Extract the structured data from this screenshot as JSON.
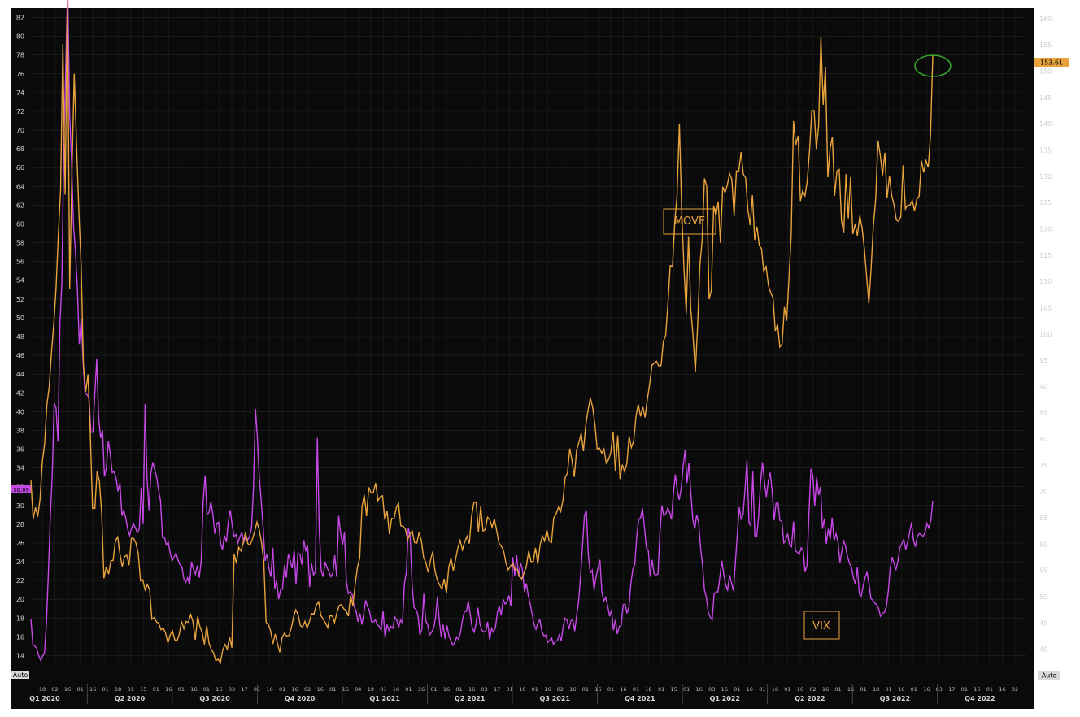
{
  "colors": {
    "background": "#0a0a0a",
    "grid": "#262626",
    "move": "#e8a33d",
    "vix": "#c848e8",
    "highlight_circle": "#3aa832"
  },
  "chart_data": {
    "type": "line",
    "series": [
      {
        "name": "MOVE",
        "axis": "right",
        "values": [
          72.1,
          64.8,
          67.0,
          65.2,
          68.5,
          75.6,
          79.0,
          86.6,
          89.9,
          96.5,
          101.8,
          108.6,
          118.8,
          127.3,
          155.2,
          126.5,
          164.0,
          108.6,
          131.3,
          149.5,
          135.7,
          123.1,
          113.0,
          94.0,
          89.0,
          92.3,
          81.2,
          66.8,
          66.8,
          73.9,
          72.0,
          66.0,
          53.5,
          55.7,
          54.3,
          56.8,
          56.9,
          60.6,
          61.4,
          58.1,
          55.7,
          57.6,
          57.9,
          56.0,
          61.1,
          61.1,
          60.2,
          58.2,
          53.0,
          53.2,
          51.3,
          52.3,
          51.3,
          45.7,
          46.0,
          45.2,
          44.9,
          43.7,
          44.0,
          43.1,
          41.2,
          42.7,
          43.5,
          41.8,
          41.6,
          42.9,
          45.3,
          43.9,
          45.3,
          45.1,
          46.6,
          45.2,
          41.8,
          46.2,
          44.3,
          43.2,
          40.9,
          44.5,
          41.1,
          40.0,
          39.3,
          37.8,
          38.1,
          37.4,
          39.8,
          40.9,
          40.0,
          42.3,
          40.3,
          58.2,
          56.3,
          59.4,
          58.7,
          60.3,
          62.2,
          60.1,
          59.8,
          60.9,
          62.4,
          64.2,
          62.7,
          60.3,
          56.7,
          45.1,
          44.7,
          43.5,
          41.0,
          42.9,
          41.1,
          39.4,
          42.2,
          43.0,
          42.5,
          42.6,
          44.0,
          46.1,
          47.5,
          46.6,
          44.5,
          44.2,
          45.3,
          44.0,
          45.3,
          46.8,
          46.7,
          48.4,
          49.0,
          46.4,
          45.7,
          45.0,
          44.1,
          46.4,
          46.3,
          45.1,
          46.9,
          48.3,
          48.5,
          47.7,
          47.4,
          46.3,
          50.2,
          48.3,
          52.3,
          55.6,
          57.3,
          67.1,
          69.4,
          65.3,
          70.8,
          69.7,
          69.9,
          71.6,
          68.3,
          69.0,
          69.2,
          64.6,
          66.3,
          61.9,
          64.9,
          64.8,
          66.9,
          67.8,
          63.5,
          63.4,
          62.9,
          60.9,
          61.9,
          62.5,
          60.3,
          60.2,
          62.2,
          60.7,
          57.4,
          56.5,
          54.6,
          56.9,
          58.6,
          54.9,
          53.1,
          52.2,
          51.4,
          53.4,
          50.6,
          55.6,
          57.3,
          54.9,
          57.1,
          59.3,
          60.7,
          58.9,
          60.4,
          61.5,
          60.1,
          65.3,
          67.9,
          68.0,
          62.3,
          67.2,
          62.5,
          62.8,
          65.1,
          64.6,
          63.2,
          64.8,
          62.6,
          60.2,
          59.6,
          58.8,
          56.5,
          55.1,
          55.8,
          56.3,
          55.2,
          55.2,
          53.8,
          53.4,
          54.5,
          55.7,
          58.7,
          56.7,
          56.7,
          59.3,
          56.2,
          59.8,
          61.6,
          60.6,
          62.7,
          60.6,
          60.3,
          65.0,
          65.7,
          67.0,
          66.2,
          68.3,
          72.7,
          73.5,
          78.2,
          75.9,
          72.8,
          77.9,
          79.3,
          81.1,
          77.7,
          82.6,
          85.5,
          87.8,
          86.1,
          82.8,
          78.1,
          78.3,
          77.3,
          78.1,
          75.4,
          76.1,
          77.5,
          81.4,
          73.8,
          80.7,
          72.4,
          75.1,
          73.8,
          75.3,
          80.5,
          78.4,
          79.6,
          84.3,
          86.6,
          84.3,
          86.1,
          84.1,
          87.7,
          90.5,
          94.1,
          94.4,
          94.8,
          93.9,
          94.0,
          98.6,
          99.7,
          105.7,
          113.0,
          112.9,
          121.3,
          126.3,
          140.0,
          123.5,
          112.6,
          103.9,
          118.6,
          104.7,
          99.6,
          92.7,
          101.5,
          113.1,
          117.9,
          129.6,
          128.1,
          106.6,
          108.3,
          124.3,
          122.5,
          125.2,
          117.3,
          128.0,
          126.9,
          128.3,
          130.5,
          129.4,
          122.4,
          131.0,
          130.9,
          134.6,
          130.4,
          129.7,
          123.6,
          120.7,
          126.4,
          117.9,
          120.4,
          116.9,
          116.2,
          111.9,
          112.8,
          109.2,
          107.8,
          106.9,
          100.6,
          101.8,
          97.5,
          98.1,
          105.1,
          102.5,
          110.4,
          119.0,
          140.5,
          136.0,
          137.7,
          125.3,
          127.2,
          126.3,
          129.1,
          134.8,
          142.5,
          142.5,
          135.2,
          139.6,
          156.5,
          143.6,
          150.7,
          129.8,
          135.3,
          137.5,
          126.3,
          131.0,
          131.3,
          121.6,
          119.2,
          130.4,
          122.0,
          129.8,
          119.0,
          120.9,
          118.7,
          122.5,
          120.2,
          116.3,
          110.9,
          105.8,
          112.7,
          120.8,
          125.7,
          136.8,
          134.0,
          130.2,
          134.5,
          125.9,
          130.1,
          126.3,
          124.6,
          121.7,
          121.4,
          122.3,
          132.1,
          123.8,
          124.5,
          124.5,
          125.4,
          123.4,
          125.6,
          126.2,
          133.0,
          130.7,
          133.0,
          131.7,
          137.8,
          153.0
        ],
        "last_label": "153.61"
      },
      {
        "name": "VIX",
        "axis": "left",
        "values": [
          17.9,
          15.2,
          15.0,
          14.8,
          14.0,
          13.5,
          13.9,
          14.3,
          17.3,
          22.6,
          28.6,
          33.2,
          40.9,
          40.4,
          36.8,
          49.4,
          53.9,
          68.4,
          76.4,
          85.5,
          71.8,
          66.6,
          59.8,
          57.2,
          53.2,
          47.2,
          49.9,
          45.1,
          42.0,
          41.8,
          41.5,
          37.8,
          37.8,
          41.7,
          45.6,
          39.4,
          37.2,
          38.0,
          33.1,
          34.0,
          36.9,
          35.5,
          33.5,
          33.6,
          32.9,
          31.5,
          32.4,
          28.9,
          29.5,
          28.7,
          27.5,
          26.8,
          27.6,
          28.1,
          27.6,
          27.1,
          27.5,
          31.9,
          28.1,
          40.8,
          32.9,
          29.5,
          33.4,
          34.6,
          33.8,
          33.0,
          31.6,
          30.5,
          26.6,
          26.6,
          25.8,
          26.1,
          24.9,
          24.1,
          24.5,
          24.9,
          24.2,
          23.7,
          23.5,
          22.2,
          21.8,
          22.3,
          21.6,
          24.0,
          23.2,
          22.7,
          23.6,
          22.3,
          24.1,
          30.4,
          33.2,
          29.1,
          29.2,
          30.4,
          29.1,
          27.0,
          28.1,
          28.2,
          26.0,
          25.3,
          26.8,
          26.1,
          28.2,
          29.5,
          27.9,
          26.7,
          26.9,
          26.0,
          26.7,
          27.1,
          26.1,
          26.7,
          26.3,
          26.7,
          27.6,
          31.9,
          40.3,
          37.4,
          33.1,
          30.5,
          27.6,
          24.1,
          24.8,
          23.3,
          22.4,
          25.5,
          21.1,
          22.0,
          20.0,
          21.0,
          21.1,
          23.6,
          22.3,
          24.8,
          24.1,
          23.3,
          25.2,
          21.6,
          24.9,
          24.8,
          23.7,
          26.3,
          25.2,
          25.8,
          21.3,
          23.8,
          22.6,
          22.9,
          37.2,
          27.3,
          23.0,
          22.4,
          24.0,
          23.4,
          22.9,
          22.4,
          22.8,
          24.7,
          22.4,
          28.9,
          27.1,
          25.8,
          27.1,
          21.9,
          20.6,
          20.8,
          20.5,
          19.2,
          18.8,
          17.6,
          18.5,
          17.3,
          18.5,
          19.9,
          19.2,
          18.7,
          17.6,
          17.6,
          17.8,
          17.3,
          17.1,
          16.7,
          18.8,
          15.9,
          17.3,
          16.7,
          17.1,
          16.9,
          18.1,
          17.8,
          17.0,
          17.8,
          17.5,
          21.7,
          22.9,
          27.6,
          26.7,
          21.4,
          19.1,
          18.9,
          18.3,
          16.2,
          16.8,
          20.6,
          17.7,
          17.3,
          16.2,
          16.5,
          16.9,
          17.9,
          20.2,
          17.8,
          16.0,
          17.3,
          15.8,
          17.2,
          16.1,
          15.6,
          15.1,
          15.4,
          16.0,
          15.7,
          16.5,
          17.8,
          18.7,
          18.7,
          19.8,
          18.4,
          17.0,
          16.5,
          17.4,
          19.1,
          17.4,
          16.7,
          16.5,
          16.6,
          17.6,
          15.7,
          16.9,
          16.5,
          17.0,
          18.5,
          19.3,
          18.3,
          20.0,
          19.5,
          19.7,
          20.4,
          19.3,
          24.5,
          22.5,
          24.7,
          22.4,
          23.9,
          23.1,
          20.8,
          21.7,
          20.4,
          19.5,
          18.4,
          17.3,
          16.8,
          17.5,
          17.8,
          16.6,
          16.1,
          16.2,
          15.4,
          15.6,
          15.9,
          15.2,
          15.5,
          15.6,
          16.2,
          15.6,
          17.1,
          18.0,
          17.8,
          16.8,
          17.7,
          17.8,
          16.6,
          18.3,
          19.8,
          22.5,
          25.7,
          28.9,
          29.5,
          24.7,
          22.8,
          23.1,
          21.0,
          22.4,
          23.3,
          24.2,
          20.8,
          19.8,
          20.2,
          19.3,
          18.2,
          18.9,
          16.7,
          17.8,
          16.3,
          17.1,
          17.2,
          19.4,
          19.5,
          18.5,
          19.2,
          21.6,
          23.2,
          23.7,
          26.6,
          28.5,
          28.7,
          29.7,
          27.7,
          25.5,
          25.2,
          22.4,
          24.2,
          22.7,
          22.6,
          22.7,
          27.0,
          30.0,
          28.9,
          29.1,
          29.7,
          29.3,
          28.5,
          31.4,
          33.3,
          31.5,
          30.6,
          31.8,
          34.2,
          35.9,
          32.4,
          34.5,
          31.3,
          28.5,
          27.5,
          29.0,
          28.2,
          25.5,
          23.7,
          21.0,
          20.2,
          18.6,
          18.1,
          17.8,
          20.6,
          20.8,
          20.8,
          22.4,
          24.1,
          22.6,
          21.5,
          21.0,
          22.6,
          21.7,
          20.9,
          24.0,
          26.9,
          29.8,
          28.5,
          29.1,
          31.9,
          34.8,
          28.2,
          27.8,
          33.6,
          26.7,
          26.7,
          28.8,
          32.5,
          34.6,
          32.5,
          30.9,
          32.6,
          33.5,
          31.5,
          28.4,
          30.2,
          30.3,
          28.4,
          28.3,
          26.0,
          26.3,
          27.0,
          25.8,
          25.6,
          28.3,
          25.2,
          25.0,
          24.8,
          25.5,
          25.2,
          22.9,
          23.6,
          29.1,
          33.9,
          33.2,
          29.9,
          33.0,
          31.1,
          32.0,
          27.5,
          28.6,
          25.9,
          27.5,
          26.4,
          28.7,
          26.3,
          27.0,
          26.1,
          23.9,
          25.1,
          26.2,
          25.6,
          24.5,
          23.8,
          23.4,
          22.3,
          21.6,
          23.4,
          20.6,
          20.3,
          21.4,
          22.3,
          22.9,
          21.7,
          20.1,
          19.9,
          19.6,
          19.4,
          19.0,
          18.2,
          18.5,
          18.6,
          19.2,
          20.9,
          23.3,
          24.5,
          23.8,
          23.2,
          24.1,
          25.5,
          25.9,
          26.4,
          25.3,
          26.1,
          27.1,
          28.2,
          26.3,
          25.6,
          26.7,
          27.0,
          26.9,
          26.7,
          27.1,
          28.1,
          27.6,
          28.4,
          30.5
        ]
      }
    ],
    "xlabel_segments": [
      {
        "label": "18"
      },
      {
        "label": "02"
      },
      {
        "label": "16"
      },
      {
        "label": "01"
      },
      {
        "label": "16"
      },
      {
        "label": "01"
      },
      {
        "label": "18"
      },
      {
        "label": "01"
      },
      {
        "label": "15"
      },
      {
        "label": "01"
      },
      {
        "label": "16"
      },
      {
        "label": "01"
      },
      {
        "label": "16"
      },
      {
        "label": "01"
      },
      {
        "label": "16"
      },
      {
        "label": "03"
      },
      {
        "label": "17"
      },
      {
        "label": "01"
      },
      {
        "label": "16"
      },
      {
        "label": "01"
      },
      {
        "label": "16"
      },
      {
        "label": "02"
      },
      {
        "label": "16"
      },
      {
        "label": "01"
      },
      {
        "label": "16"
      },
      {
        "label": "04"
      },
      {
        "label": "19"
      },
      {
        "label": "01"
      },
      {
        "label": "16"
      },
      {
        "label": "01"
      },
      {
        "label": "16"
      },
      {
        "label": "01"
      },
      {
        "label": "16"
      },
      {
        "label": "01"
      },
      {
        "label": "16"
      },
      {
        "label": "03"
      },
      {
        "label": "17"
      },
      {
        "label": "01"
      },
      {
        "label": "16"
      },
      {
        "label": "01"
      },
      {
        "label": "16"
      },
      {
        "label": "02"
      },
      {
        "label": "16"
      },
      {
        "label": "01"
      },
      {
        "label": "16"
      },
      {
        "label": "01"
      },
      {
        "label": "16"
      },
      {
        "label": "01"
      },
      {
        "label": "18"
      },
      {
        "label": "01"
      },
      {
        "label": "15"
      },
      {
        "label": "01"
      },
      {
        "label": "16"
      },
      {
        "label": "03"
      },
      {
        "label": "16"
      },
      {
        "label": "01"
      },
      {
        "label": "16"
      },
      {
        "label": "01"
      },
      {
        "label": "16"
      },
      {
        "label": "01"
      },
      {
        "label": "16"
      },
      {
        "label": "02"
      },
      {
        "label": "16"
      },
      {
        "label": "01"
      },
      {
        "label": "16"
      },
      {
        "label": "01"
      },
      {
        "label": "18"
      },
      {
        "label": "01"
      },
      {
        "label": "16"
      },
      {
        "label": "01"
      },
      {
        "label": "16"
      },
      {
        "label": "03"
      },
      {
        "label": "17"
      },
      {
        "label": "01"
      },
      {
        "label": "16"
      },
      {
        "label": "01"
      },
      {
        "label": "16"
      },
      {
        "label": "02"
      }
    ],
    "quarters": [
      "Q1 2020",
      "Q2 2020",
      "Q3 2020",
      "Q4 2020",
      "Q1 2021",
      "Q2 2021",
      "Q3 2021",
      "Q4 2021",
      "Q1 2022",
      "Q2 2022",
      "Q3 2022",
      "Q4 2022"
    ],
    "left_axis": {
      "ticks": [
        14,
        16,
        18,
        20,
        22,
        24,
        26,
        28,
        30,
        32,
        34,
        36,
        38,
        40,
        42,
        44,
        46,
        48,
        50,
        52,
        54,
        56,
        58,
        60,
        62,
        64,
        66,
        68,
        70,
        72,
        74,
        76,
        78,
        80,
        82
      ],
      "range": [
        13.0,
        83.0
      ],
      "last_label": "30.69"
    },
    "right_axis": {
      "ticks": [
        40,
        45,
        50,
        55,
        60,
        65,
        70,
        75,
        80,
        85,
        90,
        95,
        100,
        105,
        110,
        115,
        120,
        125,
        130,
        135,
        140,
        145,
        150,
        155,
        160
      ],
      "range": [
        37.0,
        162.0
      ]
    },
    "annotations": [
      "MOVE",
      "VIX"
    ],
    "axis_buttons": {
      "left": "Auto",
      "right": "Auto"
    },
    "grid": true
  }
}
